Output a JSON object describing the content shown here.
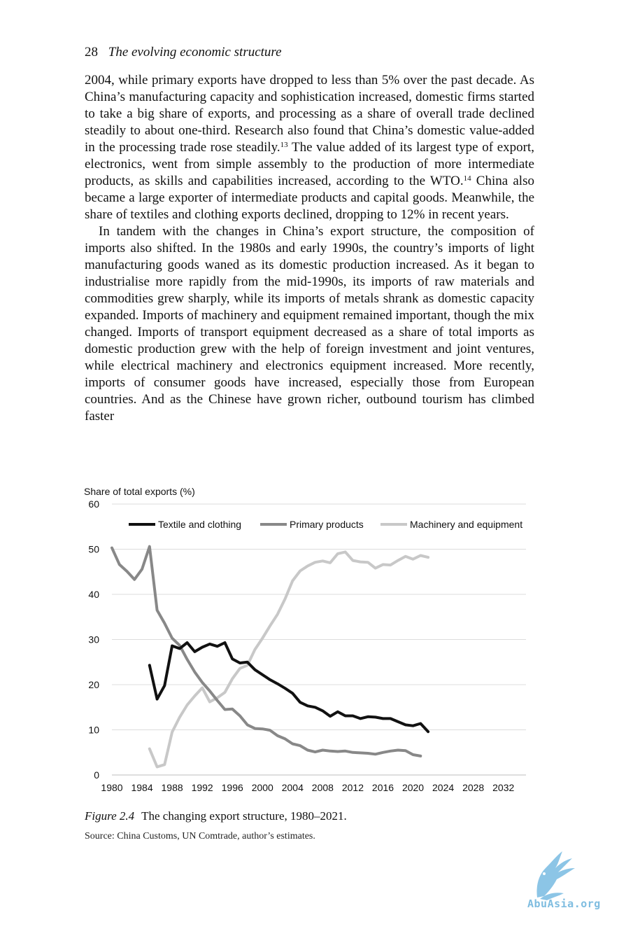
{
  "header": {
    "page_number": "28",
    "title": "The evolving economic structure"
  },
  "body": {
    "p1_a": "2004, while primary exports have dropped to less than 5% over the past decade. As China’s manufacturing capacity and sophistication increased, domestic firms started to take a big share of exports, and processing as a share of overall trade declined steadily to about one-third. Research also found that China’s domestic value-added in the processing trade rose steadily.",
    "p1_fn1": "13",
    "p1_b": " The value added of its largest type of export, electronics, went from simple assembly to the production of more intermediate products, as skills and capabilities increased, according to the WTO.",
    "p1_fn2": "14",
    "p1_c": " China also became a large exporter of intermediate products and capital goods. Meanwhile, the share of textiles and clothing exports declined, dropping to 12% in recent years.",
    "p2": "In tandem with the changes in China’s export structure, the composition of imports also shifted. In the 1980s and early 1990s, the country’s imports of light manufacturing goods waned as its domestic production increased. As it began to industrialise more rapidly from the mid-1990s, its imports of raw materials and commodities grew sharply, while its imports of metals shrank as domestic capacity expanded. Imports of machinery and equipment remained important, though the mix changed. Imports of transport equipment decreased as a share of total imports as domestic production grew with the help of foreign investment and joint ventures, while electrical machinery and electronics equipment increased. More recently, imports of consumer goods have increased, especially those from European countries. And as the Chinese have grown richer, outbound tourism has climbed faster"
  },
  "figure": {
    "label": "Figure 2.4",
    "caption": "The changing export structure, 1980–2021.",
    "source": "Source: China Customs, UN Comtrade, author’s estimates."
  },
  "watermark": {
    "text": "AbuAsia.org"
  },
  "chart_data": {
    "type": "line",
    "ylabel": "Share of total exports (%)",
    "ylim": [
      0,
      60
    ],
    "yticks": [
      0,
      10,
      20,
      30,
      40,
      50,
      60
    ],
    "xlim": [
      1980,
      2035
    ],
    "xticks": [
      1980,
      1984,
      1988,
      1992,
      1996,
      2000,
      2004,
      2008,
      2012,
      2016,
      2020,
      2024,
      2028,
      2032
    ],
    "grid": "horizontal",
    "legend": "top",
    "series": [
      {
        "name": "Textile and clothing",
        "color": "#111111",
        "points": [
          [
            1985,
            24.3
          ],
          [
            1986,
            16.8
          ],
          [
            1987,
            19.8
          ],
          [
            1988,
            28.6
          ],
          [
            1989,
            28.0
          ],
          [
            1990,
            29.3
          ],
          [
            1991,
            27.3
          ],
          [
            1992,
            28.3
          ],
          [
            1993,
            29.0
          ],
          [
            1994,
            28.5
          ],
          [
            1995,
            29.3
          ],
          [
            1996,
            25.7
          ],
          [
            1997,
            24.8
          ],
          [
            1998,
            25.0
          ],
          [
            1999,
            23.3
          ],
          [
            2000,
            22.2
          ],
          [
            2001,
            21.1
          ],
          [
            2002,
            20.2
          ],
          [
            2003,
            19.2
          ],
          [
            2004,
            18.1
          ],
          [
            2005,
            16.1
          ],
          [
            2006,
            15.3
          ],
          [
            2007,
            15.0
          ],
          [
            2008,
            14.2
          ],
          [
            2009,
            13.0
          ],
          [
            2010,
            14.0
          ],
          [
            2011,
            13.1
          ],
          [
            2012,
            13.1
          ],
          [
            2013,
            12.5
          ],
          [
            2014,
            12.9
          ],
          [
            2015,
            12.8
          ],
          [
            2016,
            12.5
          ],
          [
            2017,
            12.5
          ],
          [
            2018,
            11.8
          ],
          [
            2019,
            11.1
          ],
          [
            2020,
            10.9
          ],
          [
            2021,
            11.4
          ],
          [
            2022,
            9.6
          ]
        ]
      },
      {
        "name": "Primary products",
        "color": "#888888",
        "points": [
          [
            1980,
            50.3
          ],
          [
            1981,
            46.6
          ],
          [
            1982,
            45.1
          ],
          [
            1983,
            43.3
          ],
          [
            1984,
            45.6
          ],
          [
            1985,
            50.6
          ],
          [
            1986,
            36.5
          ],
          [
            1987,
            33.6
          ],
          [
            1988,
            30.3
          ],
          [
            1989,
            28.7
          ],
          [
            1990,
            25.6
          ],
          [
            1991,
            22.8
          ],
          [
            1992,
            20.5
          ],
          [
            1993,
            18.6
          ],
          [
            1994,
            16.5
          ],
          [
            1995,
            14.5
          ],
          [
            1996,
            14.6
          ],
          [
            1997,
            13.1
          ],
          [
            1998,
            11.1
          ],
          [
            1999,
            10.3
          ],
          [
            2000,
            10.2
          ],
          [
            2001,
            9.9
          ],
          [
            2002,
            8.7
          ],
          [
            2003,
            8.0
          ],
          [
            2004,
            6.9
          ],
          [
            2005,
            6.5
          ],
          [
            2006,
            5.5
          ],
          [
            2007,
            5.1
          ],
          [
            2008,
            5.5
          ],
          [
            2009,
            5.3
          ],
          [
            2010,
            5.2
          ],
          [
            2011,
            5.3
          ],
          [
            2012,
            5.0
          ],
          [
            2013,
            4.9
          ],
          [
            2014,
            4.8
          ],
          [
            2015,
            4.6
          ],
          [
            2016,
            5.0
          ],
          [
            2017,
            5.3
          ],
          [
            2018,
            5.5
          ],
          [
            2019,
            5.4
          ],
          [
            2020,
            4.5
          ],
          [
            2021,
            4.2
          ]
        ]
      },
      {
        "name": "Machinery and equipment",
        "color": "#c8c8c8",
        "points": [
          [
            1985,
            5.8
          ],
          [
            1986,
            1.8
          ],
          [
            1987,
            2.3
          ],
          [
            1988,
            9.5
          ],
          [
            1989,
            12.8
          ],
          [
            1990,
            15.5
          ],
          [
            1991,
            17.5
          ],
          [
            1992,
            19.3
          ],
          [
            1993,
            16.2
          ],
          [
            1994,
            17.1
          ],
          [
            1995,
            18.3
          ],
          [
            1996,
            21.3
          ],
          [
            1997,
            23.6
          ],
          [
            1998,
            24.3
          ],
          [
            1999,
            27.8
          ],
          [
            2000,
            30.3
          ],
          [
            2001,
            33.0
          ],
          [
            2002,
            35.6
          ],
          [
            2003,
            39.0
          ],
          [
            2004,
            43.0
          ],
          [
            2005,
            45.2
          ],
          [
            2006,
            46.3
          ],
          [
            2007,
            47.1
          ],
          [
            2008,
            47.4
          ],
          [
            2009,
            47.0
          ],
          [
            2010,
            49.0
          ],
          [
            2011,
            49.4
          ],
          [
            2012,
            47.5
          ],
          [
            2013,
            47.2
          ],
          [
            2014,
            47.1
          ],
          [
            2015,
            45.8
          ],
          [
            2016,
            46.6
          ],
          [
            2017,
            46.5
          ],
          [
            2018,
            47.5
          ],
          [
            2019,
            48.4
          ],
          [
            2020,
            47.8
          ],
          [
            2021,
            48.6
          ],
          [
            2022,
            48.2
          ]
        ]
      }
    ]
  }
}
